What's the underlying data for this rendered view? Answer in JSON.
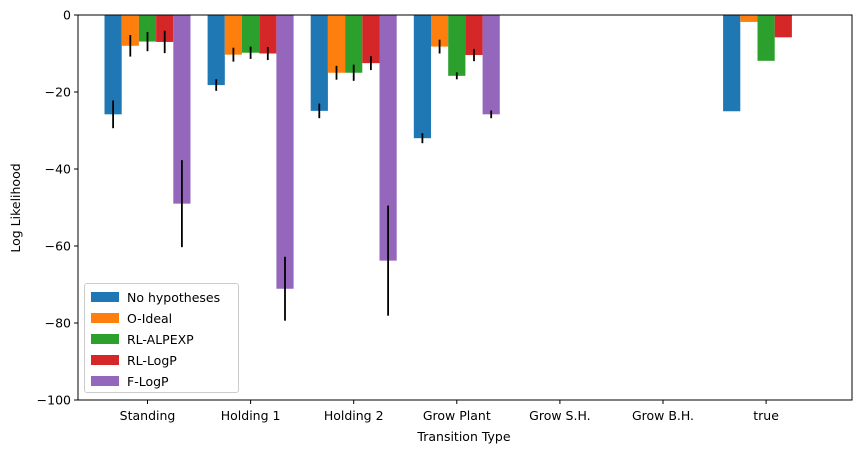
{
  "chart_data": {
    "type": "bar",
    "title": "",
    "xlabel": "Transition Type",
    "ylabel": "Log Likelihood",
    "ylim": [
      -100,
      0
    ],
    "yticks": [
      0,
      -20,
      -40,
      -60,
      -80,
      -100
    ],
    "ytick_labels": [
      "0",
      "−20",
      "−40",
      "−60",
      "−80",
      "−100"
    ],
    "categories": [
      "Standing",
      "Holding 1",
      "Holding 2",
      "Grow Plant",
      "Grow S.H.",
      "Grow B.H.",
      "true"
    ],
    "legend_position": "lower-left",
    "series": [
      {
        "name": "No hypotheses",
        "color": "#1f77b4",
        "values": [
          -25.8,
          -18.2,
          -24.9,
          -32.0,
          null,
          null,
          -25.0
        ],
        "errors": [
          3.6,
          1.5,
          1.9,
          1.3,
          null,
          null,
          null
        ]
      },
      {
        "name": "O-Ideal",
        "color": "#ff7f0e",
        "values": [
          -8.0,
          -10.3,
          -15.0,
          -8.2,
          null,
          null,
          -1.8
        ],
        "errors": [
          2.8,
          1.8,
          1.8,
          1.8,
          null,
          null,
          null
        ]
      },
      {
        "name": "RL-ALPEXP",
        "color": "#2ca02c",
        "values": [
          -6.9,
          -9.8,
          -15.0,
          -15.8,
          null,
          null,
          -11.9
        ],
        "errors": [
          2.5,
          1.6,
          2.1,
          0.9,
          null,
          null,
          null
        ]
      },
      {
        "name": "RL-LogP",
        "color": "#d62728",
        "values": [
          -7.0,
          -10.0,
          -12.5,
          -10.4,
          null,
          null,
          -5.8
        ],
        "errors": [
          2.9,
          1.7,
          1.8,
          1.6,
          null,
          null,
          null
        ]
      },
      {
        "name": "F-LogP",
        "color": "#9467bd",
        "values": [
          -49.0,
          -71.1,
          -63.8,
          -25.8,
          null,
          null,
          null
        ],
        "errors": [
          11.3,
          8.3,
          14.3,
          1.0,
          null,
          null,
          null
        ]
      }
    ]
  }
}
